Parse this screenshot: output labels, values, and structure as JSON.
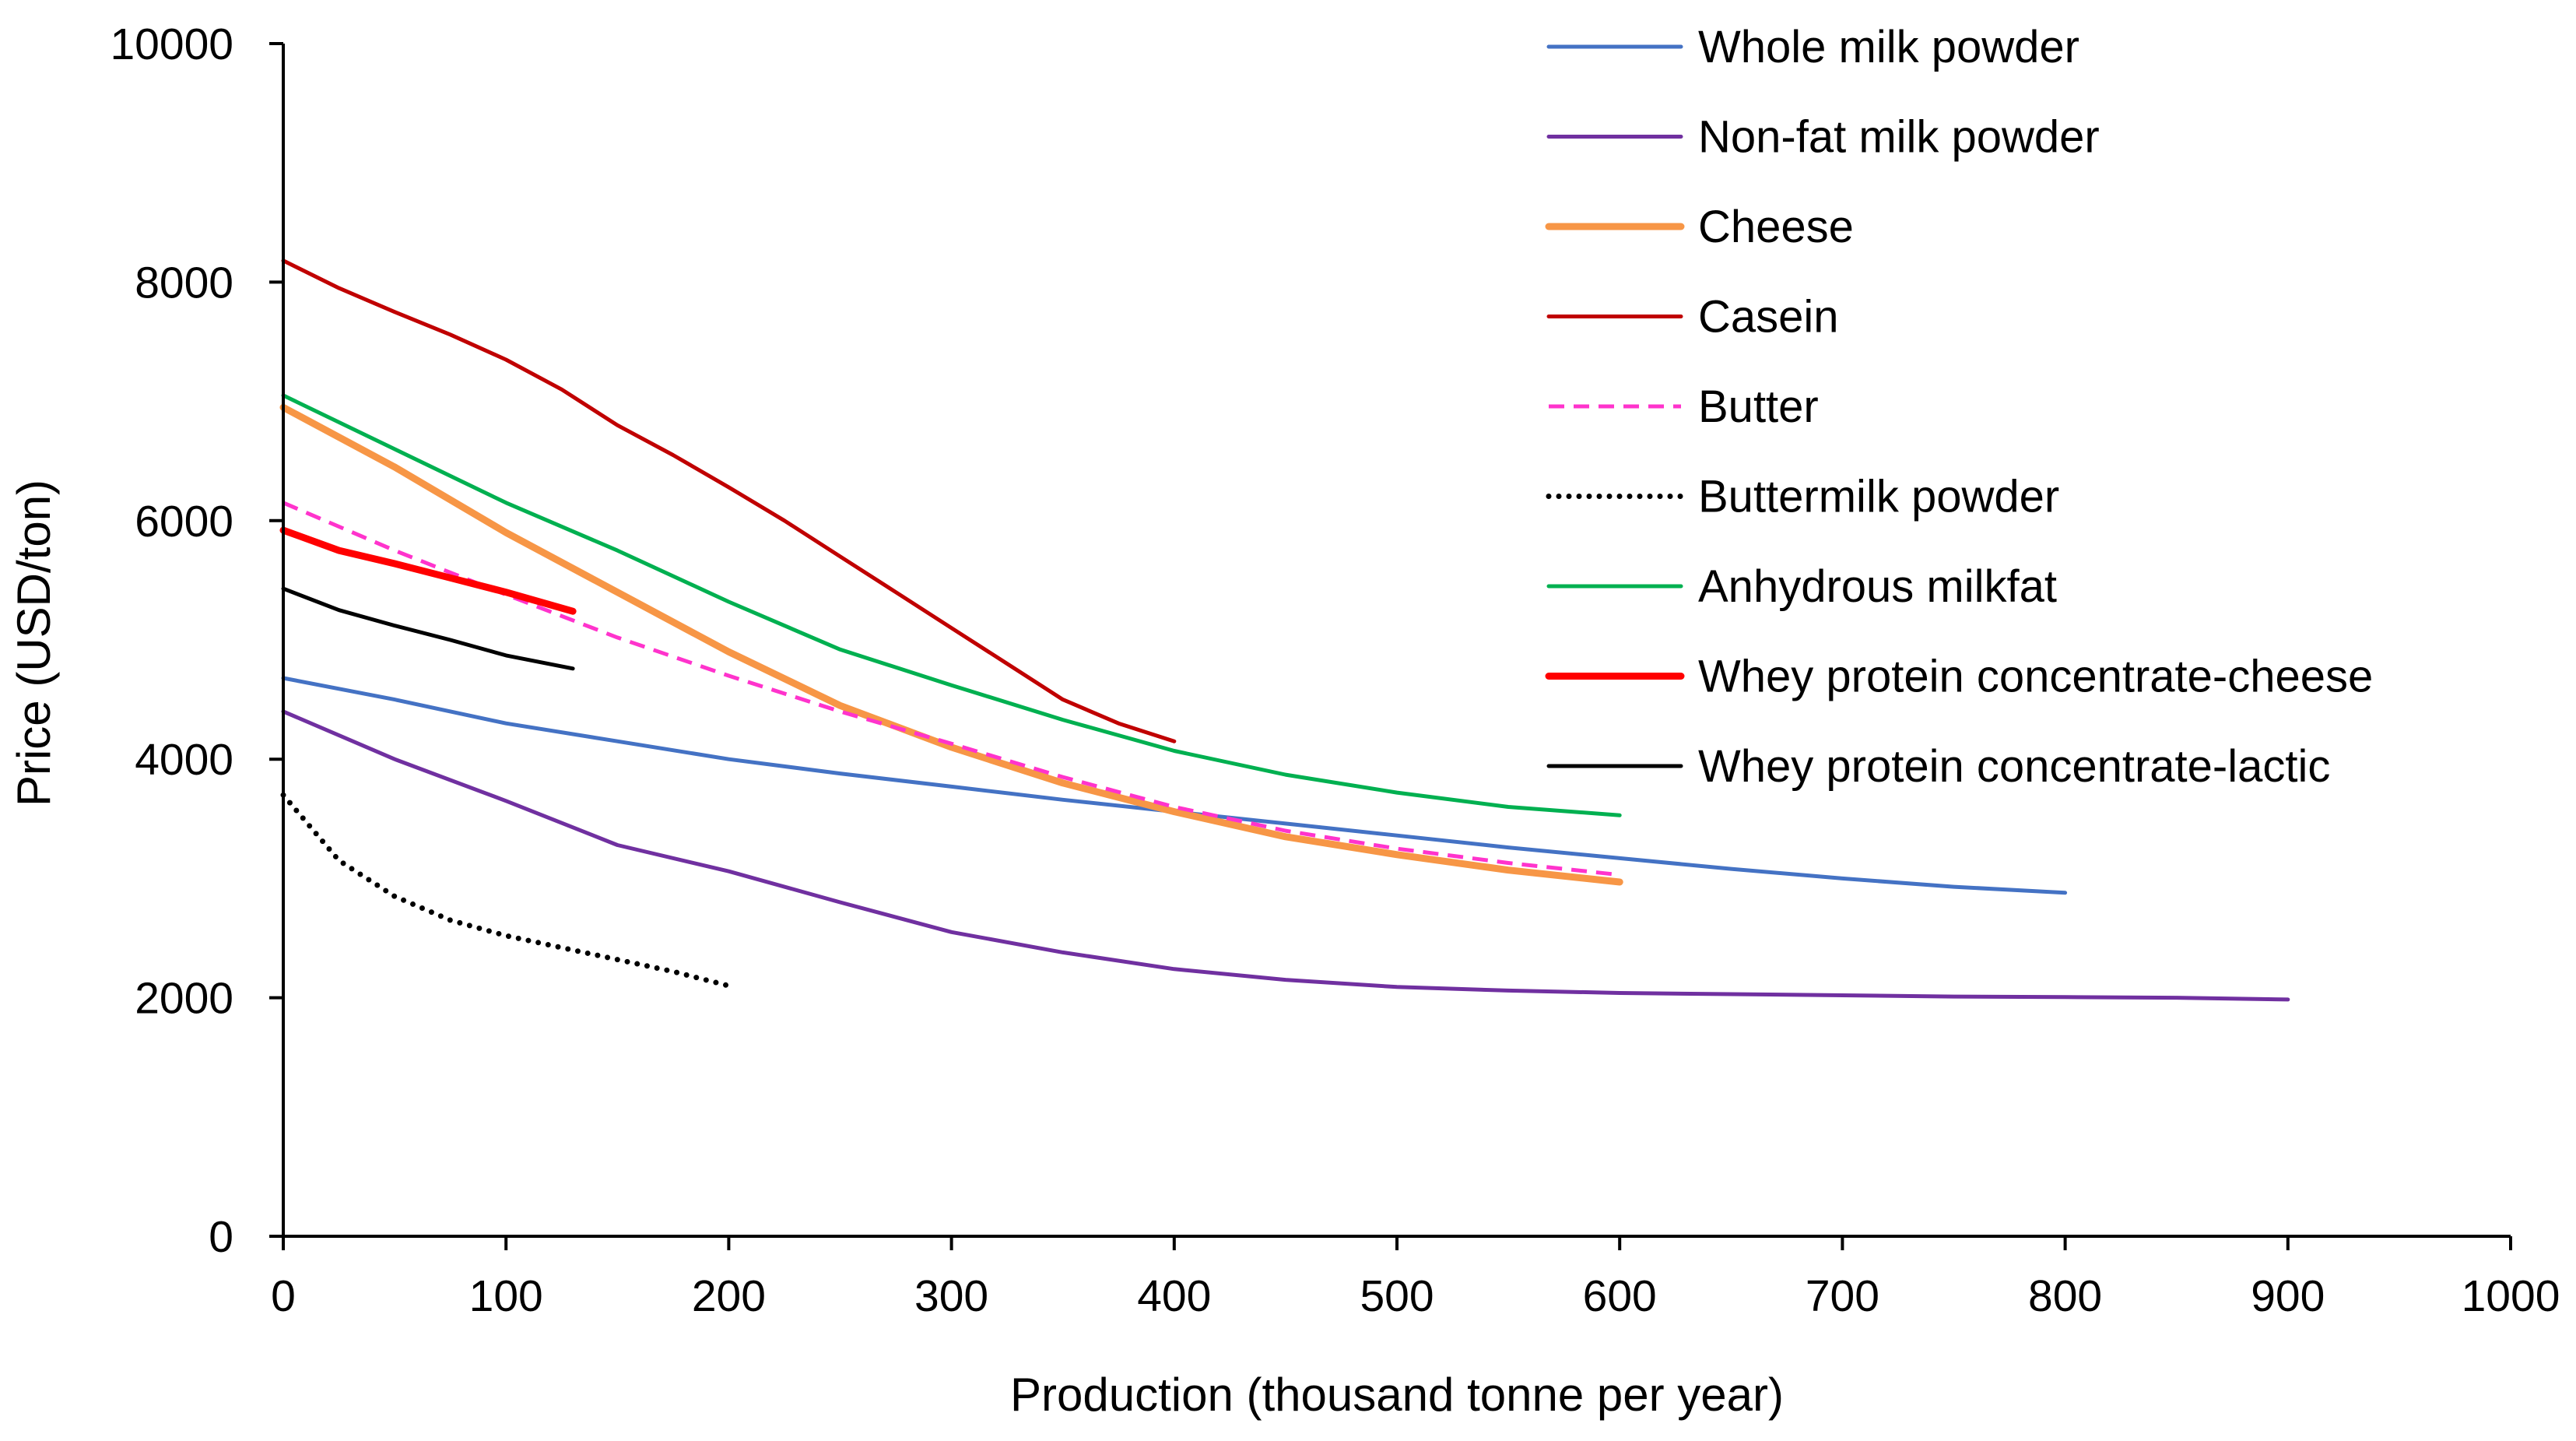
{
  "chart_data": {
    "type": "line",
    "title": "",
    "xlabel": "Production (thousand tonne per year)",
    "ylabel": "Price (USD/ton)",
    "xlim": [
      0,
      1000
    ],
    "ylim": [
      0,
      10000
    ],
    "xticks": [
      0,
      100,
      200,
      300,
      400,
      500,
      600,
      700,
      800,
      900,
      1000
    ],
    "yticks": [
      0,
      2000,
      4000,
      6000,
      8000,
      10000
    ],
    "grid": false,
    "legend_position": "top-right",
    "series": [
      {
        "name": "Whole milk powder",
        "color": "#4472c4",
        "dash": "solid",
        "weight": "thin",
        "x": [
          0,
          50,
          100,
          150,
          200,
          250,
          300,
          350,
          400,
          450,
          500,
          550,
          600,
          650,
          700,
          750,
          800
        ],
        "y": [
          4680,
          4500,
          4300,
          4150,
          4000,
          3880,
          3770,
          3660,
          3560,
          3460,
          3360,
          3260,
          3170,
          3080,
          3000,
          2930,
          2880
        ]
      },
      {
        "name": "Non-fat milk powder",
        "color": "#7030a0",
        "dash": "solid",
        "weight": "thin",
        "x": [
          0,
          50,
          100,
          150,
          200,
          250,
          300,
          350,
          400,
          450,
          500,
          550,
          600,
          650,
          700,
          750,
          800,
          850,
          900
        ],
        "y": [
          4400,
          4000,
          3650,
          3280,
          3060,
          2800,
          2550,
          2380,
          2240,
          2150,
          2090,
          2060,
          2040,
          2030,
          2020,
          2010,
          2005,
          2000,
          1985
        ]
      },
      {
        "name": "Cheese",
        "color": "#f79646",
        "dash": "solid",
        "weight": "thick",
        "x": [
          0,
          50,
          100,
          150,
          200,
          250,
          300,
          350,
          400,
          450,
          500,
          550,
          600
        ],
        "y": [
          6950,
          6450,
          5900,
          5400,
          4900,
          4450,
          4100,
          3800,
          3560,
          3350,
          3200,
          3070,
          2970
        ]
      },
      {
        "name": "Casein",
        "color": "#c00000",
        "dash": "solid",
        "weight": "thin",
        "x": [
          0,
          25,
          50,
          75,
          100,
          125,
          150,
          175,
          200,
          225,
          250,
          275,
          300,
          325,
          350,
          375,
          400
        ],
        "y": [
          8180,
          7950,
          7750,
          7560,
          7350,
          7100,
          6800,
          6550,
          6280,
          6000,
          5700,
          5400,
          5100,
          4800,
          4500,
          4300,
          4150
        ]
      },
      {
        "name": "Butter",
        "color": "#ff33cc",
        "dash": "dashed",
        "weight": "thin",
        "x": [
          0,
          50,
          100,
          150,
          200,
          250,
          300,
          350,
          400,
          450,
          500,
          550,
          600
        ],
        "y": [
          6150,
          5750,
          5380,
          5020,
          4700,
          4400,
          4130,
          3850,
          3600,
          3400,
          3250,
          3130,
          3030
        ]
      },
      {
        "name": "Buttermilk powder",
        "color": "#000000",
        "dash": "dotted",
        "weight": "thin",
        "x": [
          0,
          25,
          50,
          75,
          100,
          125,
          150,
          175,
          200
        ],
        "y": [
          3700,
          3150,
          2850,
          2650,
          2520,
          2420,
          2320,
          2220,
          2100
        ]
      },
      {
        "name": "Anhydrous milkfat",
        "color": "#00b050",
        "dash": "solid",
        "weight": "thin",
        "x": [
          0,
          50,
          100,
          150,
          200,
          250,
          300,
          350,
          400,
          450,
          500,
          550,
          600
        ],
        "y": [
          7050,
          6600,
          6150,
          5750,
          5320,
          4920,
          4620,
          4330,
          4070,
          3870,
          3720,
          3600,
          3530
        ]
      },
      {
        "name": "Whey protein concentrate-cheese",
        "color": "#ff0000",
        "dash": "solid",
        "weight": "thick",
        "x": [
          0,
          25,
          50,
          75,
          100,
          130
        ],
        "y": [
          5920,
          5750,
          5640,
          5520,
          5400,
          5240
        ]
      },
      {
        "name": "Whey protein concentrate-lactic",
        "color": "#000000",
        "dash": "solid",
        "weight": "thin",
        "x": [
          0,
          25,
          50,
          75,
          100,
          130
        ],
        "y": [
          5430,
          5250,
          5120,
          5000,
          4870,
          4760
        ]
      }
    ]
  }
}
